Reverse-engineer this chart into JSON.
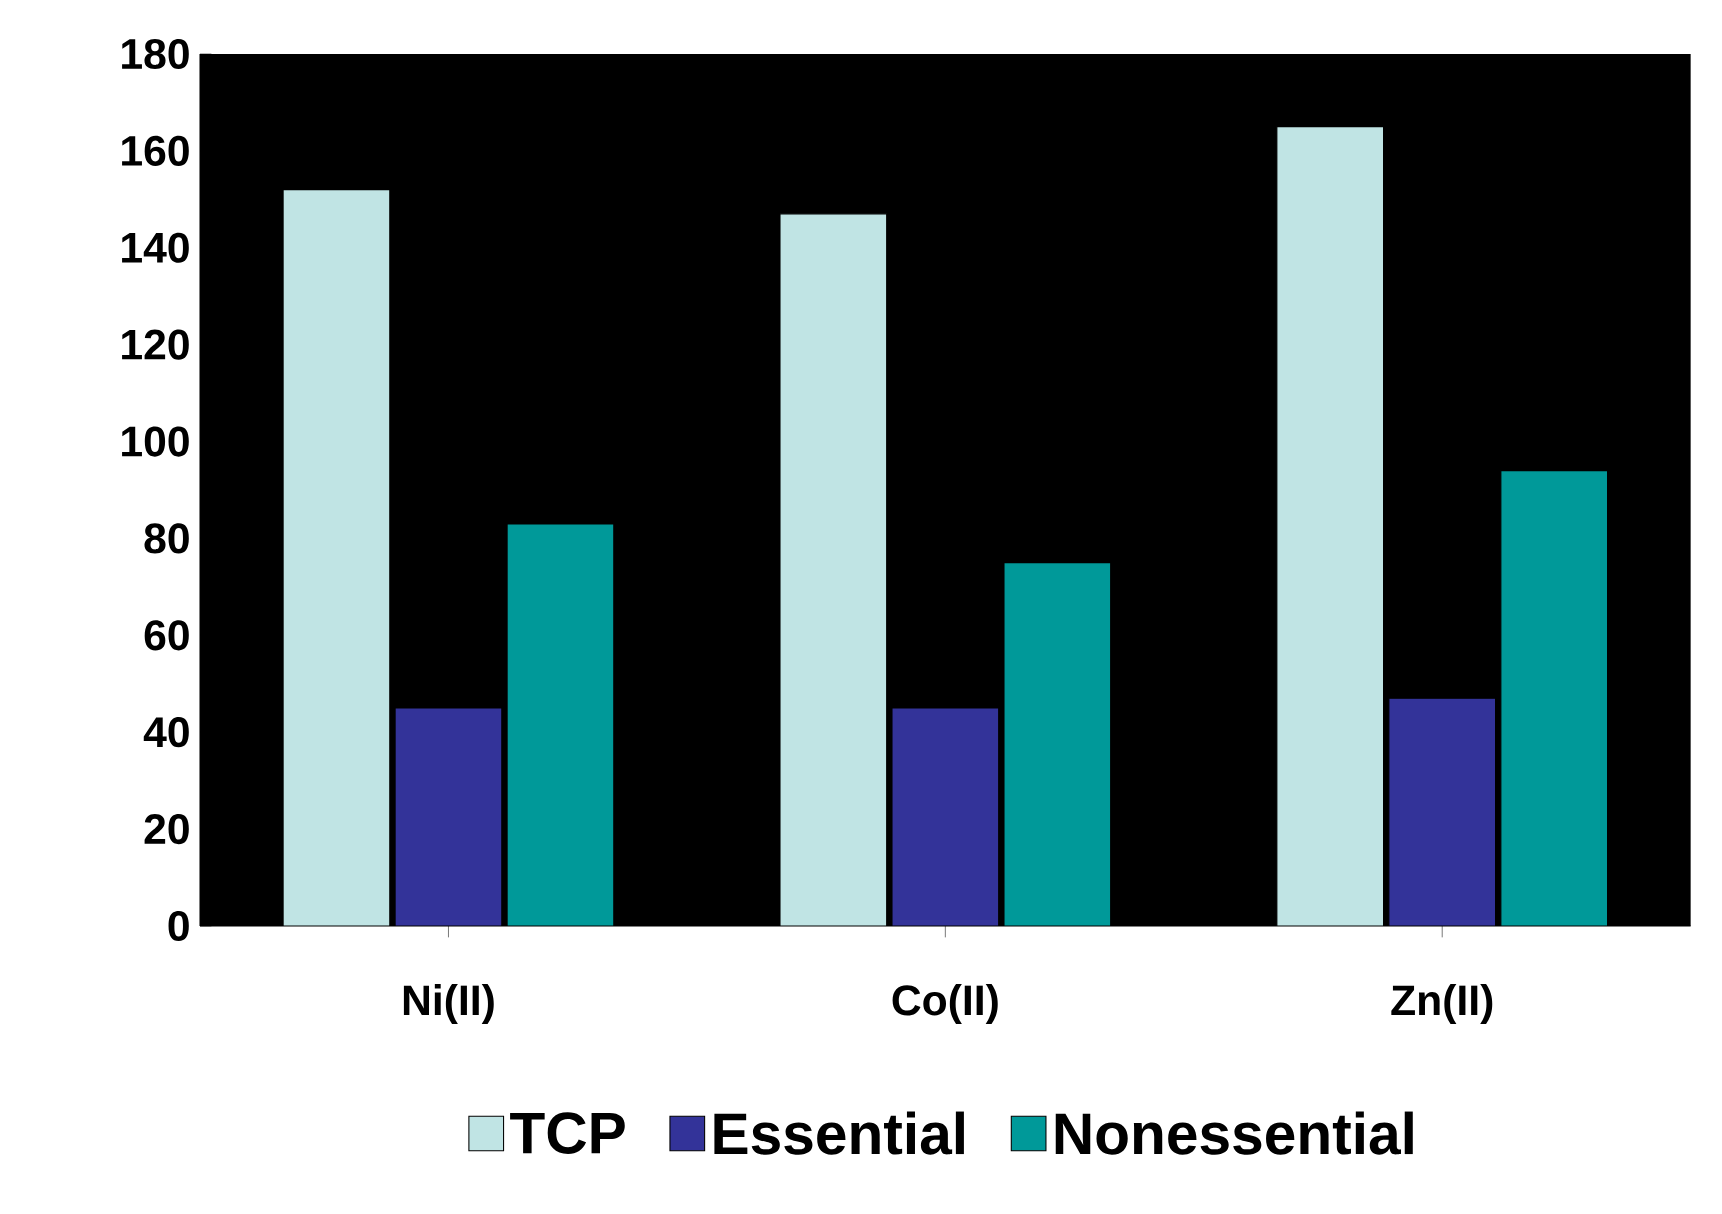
{
  "chart_data": {
    "type": "bar",
    "categories": [
      "Ni(II)",
      "Co(II)",
      "Zn(II)"
    ],
    "series": [
      {
        "name": "TCP",
        "color": "#c0e4e4",
        "values": [
          152,
          147,
          165
        ]
      },
      {
        "name": "Essential",
        "color": "#333399",
        "values": [
          45,
          45,
          47
        ]
      },
      {
        "name": "Nonessential",
        "color": "#009999",
        "values": [
          83,
          75,
          94
        ]
      }
    ],
    "ylim": [
      0,
      180
    ],
    "yticks": [
      0,
      20,
      40,
      60,
      80,
      100,
      120,
      140,
      160,
      180
    ],
    "legend": "bottom"
  }
}
